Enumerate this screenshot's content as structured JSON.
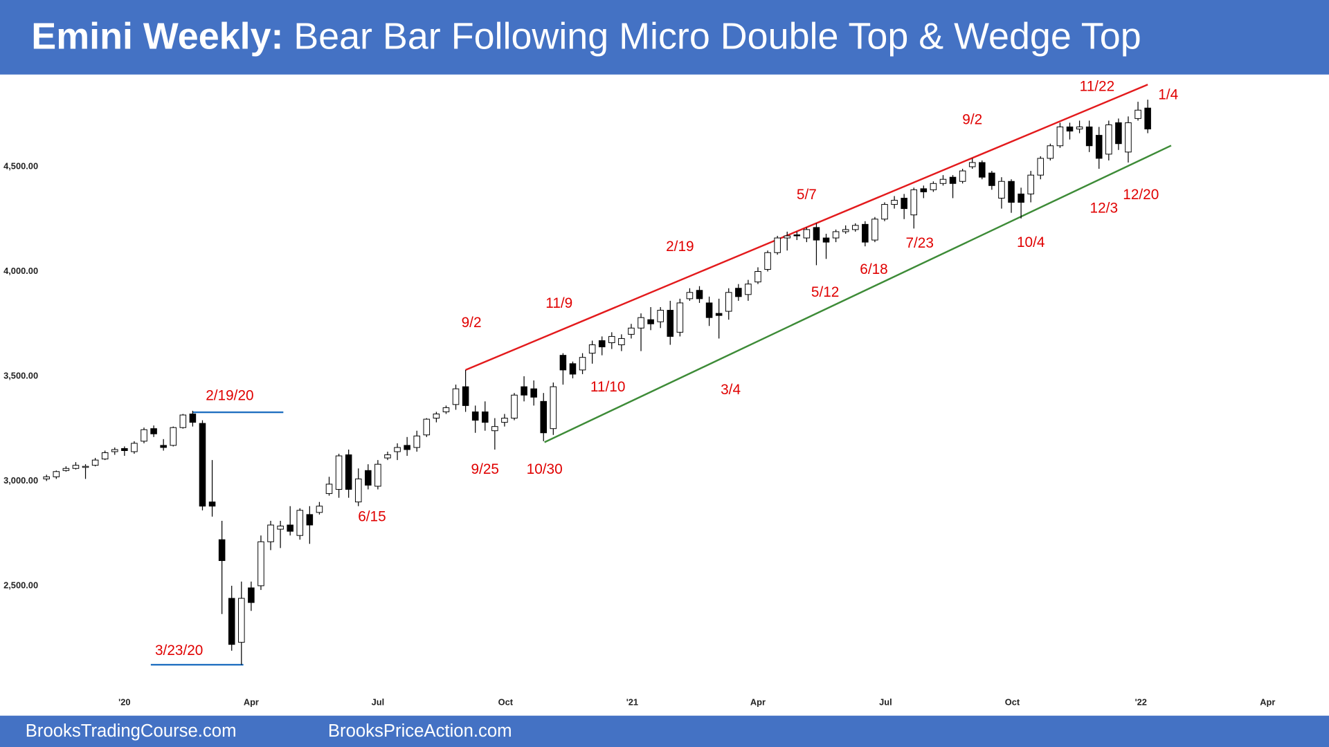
{
  "chart_data": {
    "type": "candlestick",
    "title_bold": "Emini Weekly:",
    "title": "Bear Bar Following Micro Double Top & Wedge Top",
    "footer_left": "BrooksTradingCourse.com",
    "footer_right": "BrooksPriceAction.com",
    "header_color": "#4472c4",
    "up_color": "#ffffff",
    "down_color": "#000000",
    "open": [
      3010,
      3020,
      3050,
      3060,
      3065,
      3075,
      3105,
      3140,
      3155,
      3140,
      3190,
      3250,
      3170,
      3170,
      3255,
      3320,
      3275,
      2900,
      2720,
      2440,
      2230,
      2490,
      2500,
      2710,
      2770,
      2790,
      2740,
      2840,
      2850,
      2940,
      2960,
      3125,
      2900,
      3050,
      2975,
      3110,
      3140,
      3170,
      3160,
      3220,
      3300,
      3330,
      3365,
      3450,
      3330,
      3330,
      3240,
      3280,
      3300,
      3450,
      3440,
      3380,
      3250,
      3600,
      3560,
      3530,
      3610,
      3670,
      3660,
      3650,
      3700,
      3730,
      3770,
      3760,
      3815,
      3710,
      3870,
      3910,
      3850,
      3800,
      3810,
      3920,
      3890,
      3950,
      4010,
      4090,
      4160,
      4175,
      4160,
      4210,
      4160,
      4160,
      4190,
      4200,
      4225,
      4150,
      4250,
      4320,
      4350,
      4270,
      4395,
      4390,
      4420,
      4450,
      4430,
      4500,
      4520,
      4470,
      4350,
      4430,
      4370,
      4370,
      4460,
      4540,
      4600,
      4690,
      4680,
      4690,
      4650,
      4560,
      4710,
      4570,
      4730,
      4780
    ],
    "high": [
      3030,
      3050,
      3070,
      3090,
      3080,
      3110,
      3145,
      3160,
      3165,
      3190,
      3255,
      3265,
      3200,
      3260,
      3320,
      3335,
      3290,
      3100,
      2810,
      2500,
      2520,
      2520,
      2740,
      2810,
      2810,
      2880,
      2870,
      2880,
      2900,
      3020,
      3130,
      3150,
      3060,
      3080,
      3100,
      3140,
      3180,
      3210,
      3240,
      3300,
      3330,
      3360,
      3460,
      3530,
      3360,
      3380,
      3300,
      3320,
      3420,
      3500,
      3480,
      3420,
      3470,
      3610,
      3570,
      3610,
      3670,
      3690,
      3710,
      3700,
      3750,
      3800,
      3830,
      3830,
      3860,
      3870,
      3920,
      3930,
      3880,
      3870,
      3920,
      3940,
      3960,
      4020,
      4100,
      4170,
      4190,
      4190,
      4210,
      4230,
      4180,
      4200,
      4220,
      4230,
      4240,
      4260,
      4330,
      4360,
      4370,
      4400,
      4410,
      4430,
      4460,
      4460,
      4490,
      4540,
      4530,
      4480,
      4450,
      4440,
      4400,
      4480,
      4550,
      4610,
      4710,
      4710,
      4720,
      4720,
      4690,
      4720,
      4730,
      4740,
      4810,
      4820
    ],
    "low": [
      3000,
      3010,
      3045,
      3055,
      3010,
      3070,
      3100,
      3125,
      3120,
      3130,
      3180,
      3210,
      3145,
      3165,
      3250,
      3260,
      2860,
      2830,
      2365,
      2190,
      2123,
      2380,
      2480,
      2670,
      2680,
      2740,
      2720,
      2700,
      2840,
      2930,
      2920,
      2920,
      2880,
      2960,
      2960,
      3100,
      3100,
      3120,
      3140,
      3210,
      3280,
      3320,
      3340,
      3330,
      3230,
      3240,
      3150,
      3260,
      3290,
      3380,
      3360,
      3190,
      3220,
      3460,
      3490,
      3510,
      3560,
      3600,
      3630,
      3620,
      3680,
      3620,
      3720,
      3730,
      3650,
      3690,
      3860,
      3850,
      3740,
      3680,
      3770,
      3860,
      3860,
      3940,
      4000,
      4080,
      4100,
      4150,
      4140,
      4030,
      4060,
      4140,
      4180,
      4190,
      4120,
      4140,
      4240,
      4300,
      4250,
      4205,
      4350,
      4380,
      4410,
      4350,
      4420,
      4490,
      4440,
      4390,
      4300,
      4280,
      4253,
      4330,
      4440,
      4530,
      4590,
      4630,
      4660,
      4570,
      4490,
      4530,
      4580,
      4520,
      4720,
      4660
    ],
    "close": [
      3020,
      3045,
      3060,
      3075,
      3070,
      3100,
      3135,
      3150,
      3145,
      3180,
      3245,
      3225,
      3160,
      3255,
      3315,
      3280,
      2880,
      2880,
      2620,
      2220,
      2440,
      2420,
      2710,
      2790,
      2785,
      2760,
      2860,
      2790,
      2880,
      2985,
      3120,
      2960,
      3010,
      2980,
      3080,
      3125,
      3160,
      3150,
      3215,
      3295,
      3320,
      3350,
      3440,
      3360,
      3290,
      3280,
      3260,
      3300,
      3410,
      3410,
      3400,
      3230,
      3450,
      3530,
      3510,
      3590,
      3650,
      3640,
      3690,
      3680,
      3730,
      3780,
      3750,
      3815,
      3690,
      3850,
      3900,
      3870,
      3780,
      3790,
      3900,
      3880,
      3940,
      4000,
      4090,
      4160,
      4170,
      4170,
      4200,
      4150,
      4140,
      4190,
      4200,
      4220,
      4140,
      4250,
      4320,
      4340,
      4300,
      4390,
      4380,
      4420,
      4440,
      4420,
      4480,
      4520,
      4450,
      4410,
      4430,
      4330,
      4330,
      4460,
      4540,
      4600,
      4690,
      4670,
      4690,
      4600,
      4540,
      4700,
      4610,
      4710,
      4770,
      4680
    ],
    "xlim": [
      -0.6,
      131.6
    ],
    "xticks": [
      {
        "value": 8.0,
        "label": "'20"
      },
      {
        "value": 21.0,
        "label": "Apr"
      },
      {
        "value": 34.0,
        "label": "Jul"
      },
      {
        "value": 47.1,
        "label": "Oct"
      },
      {
        "value": 60.1,
        "label": "'21"
      },
      {
        "value": 73.0,
        "label": "Apr"
      },
      {
        "value": 86.1,
        "label": "Jul"
      },
      {
        "value": 99.1,
        "label": "Oct"
      },
      {
        "value": 112.3,
        "label": "'22"
      },
      {
        "value": 125.3,
        "label": "Apr"
      }
    ],
    "ylim": [
      1880,
      4940
    ],
    "yticks": [
      {
        "value": 2500,
        "label": "2,500.00"
      },
      {
        "value": 3000,
        "label": "3,000.00"
      },
      {
        "value": 3500,
        "label": "3,500.00"
      },
      {
        "value": 4000,
        "label": "4,000.00"
      },
      {
        "value": 4500,
        "label": "4,500.00"
      }
    ],
    "lines": [
      {
        "x": [
          43,
          113
        ],
        "y": [
          3530,
          4892
        ],
        "color": "#e31a1c"
      },
      {
        "x": [
          51.1,
          115.4
        ],
        "y": [
          3185,
          4601
        ],
        "color": "#3d8b37"
      },
      {
        "x": [
          15,
          24.3
        ],
        "y": [
          3328,
          3328
        ],
        "color": "#1f6fc0"
      },
      {
        "x": [
          10.7,
          20.2
        ],
        "y": [
          2123,
          2123
        ],
        "color": "#1f6fc0"
      }
    ],
    "annotations": [
      {
        "text": "2/19/20",
        "x": 18.8,
        "y": 3404
      },
      {
        "text": "3/23/20",
        "x": 13.6,
        "y": 2188
      },
      {
        "text": "6/15",
        "x": 33.4,
        "y": 2827
      },
      {
        "text": "9/2",
        "x": 43.6,
        "y": 3752
      },
      {
        "text": "9/25",
        "x": 45.0,
        "y": 3053
      },
      {
        "text": "10/30",
        "x": 51.1,
        "y": 3053
      },
      {
        "text": "11/9",
        "x": 52.6,
        "y": 3845
      },
      {
        "text": "11/10",
        "x": 57.6,
        "y": 3445
      },
      {
        "text": "2/19",
        "x": 65.0,
        "y": 4116
      },
      {
        "text": "3/4",
        "x": 70.2,
        "y": 3433
      },
      {
        "text": "5/7",
        "x": 78.0,
        "y": 4363
      },
      {
        "text": "5/12",
        "x": 79.9,
        "y": 3898
      },
      {
        "text": "6/18",
        "x": 84.9,
        "y": 4007
      },
      {
        "text": "7/23",
        "x": 89.6,
        "y": 4132
      },
      {
        "text": "9/2",
        "x": 95.0,
        "y": 4722
      },
      {
        "text": "10/4",
        "x": 101.0,
        "y": 4136
      },
      {
        "text": "11/22",
        "x": 107.8,
        "y": 4880
      },
      {
        "text": "1/4",
        "x": 115.1,
        "y": 4840
      },
      {
        "text": "12/3",
        "x": 108.5,
        "y": 4298
      },
      {
        "text": "12/20",
        "x": 112.3,
        "y": 4363
      }
    ]
  }
}
